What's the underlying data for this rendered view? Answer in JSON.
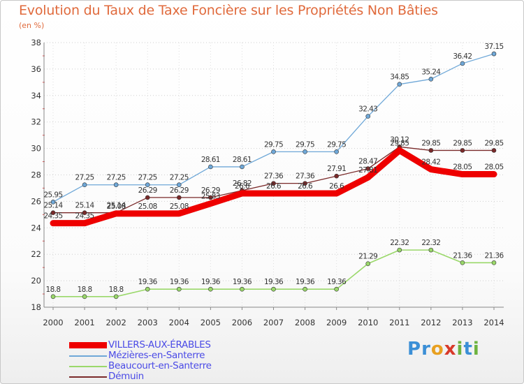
{
  "title": "Evolution du Taux de Taxe Foncière sur les Propriétés Non Bâties",
  "subtitle": "(en %)",
  "logo": {
    "text": "Proxiti",
    "letters": [
      "P",
      "r",
      "o",
      "x",
      "i",
      "t",
      "i"
    ]
  },
  "chart_data": {
    "type": "line",
    "title": "Evolution du Taux de Taxe Foncière sur les Propriétés Non Bâties",
    "ylabel": "(en %)",
    "xlabel": "",
    "x": [
      "2000",
      "2001",
      "2002",
      "2003",
      "2004",
      "2005",
      "2006",
      "2007",
      "2008",
      "2009",
      "2010",
      "2011",
      "2012",
      "2013",
      "2014"
    ],
    "ylim": [
      18,
      38
    ],
    "yticks": [
      "18",
      "20",
      "22",
      "24",
      "26",
      "28",
      "30",
      "32",
      "34",
      "36",
      "38"
    ],
    "grid": "horizontal dotted",
    "legend_position": "bottom-left",
    "series": [
      {
        "name": "VILLERS-AUX-ÉRABLES",
        "color": "#ee0000",
        "values": [
          24.35,
          24.35,
          25.08,
          25.08,
          25.08,
          25.83,
          26.6,
          26.6,
          26.6,
          26.6,
          27.81,
          29.85,
          28.42,
          28.05,
          28.05
        ],
        "labels": [
          "24.35",
          "24.35",
          "25.08",
          "25.08",
          "25.08",
          "25.83",
          "26.6",
          "26.6",
          "26.6",
          "26.6",
          "27.81",
          "29.85",
          "28.42",
          "28.05",
          "28.05"
        ]
      },
      {
        "name": "Mézières-en-Santerre",
        "color": "#6fa8d8",
        "values": [
          25.95,
          27.25,
          27.25,
          27.25,
          27.25,
          28.61,
          28.61,
          29.75,
          29.75,
          29.75,
          32.43,
          34.85,
          35.24,
          36.42,
          37.15
        ],
        "labels": [
          "25.95",
          "27.25",
          "27.25",
          "27.25",
          "27.25",
          "28.61",
          "28.61",
          "29.75",
          "29.75",
          "29.75",
          "32.43",
          "34.85",
          "35.24",
          "36.42",
          "37.15"
        ]
      },
      {
        "name": "Beaucourt-en-Santerre",
        "color": "#9ad86a",
        "values": [
          18.8,
          18.8,
          18.8,
          19.36,
          19.36,
          19.36,
          19.36,
          19.36,
          19.36,
          19.36,
          21.29,
          22.32,
          22.32,
          21.36,
          21.36
        ],
        "labels": [
          "18.8",
          "18.8",
          "18.8",
          "19.36",
          "19.36",
          "19.36",
          "19.36",
          "19.36",
          "19.36",
          "19.36",
          "21.29",
          "22.32",
          "22.32",
          "21.36",
          "21.36"
        ]
      },
      {
        "name": "Démuin",
        "color": "#7a2a2a",
        "values": [
          25.14,
          25.14,
          25.14,
          26.29,
          26.29,
          26.29,
          26.82,
          27.36,
          27.36,
          27.91,
          28.47,
          30.12,
          29.85,
          29.85,
          29.85
        ],
        "labels": [
          "25.14",
          "25.14",
          "25.14",
          "26.29",
          "26.29",
          "26.29",
          "26.82",
          "27.36",
          "27.36",
          "27.91",
          "28.47",
          "30.12",
          "29.85",
          "29.85",
          "29.85"
        ]
      }
    ]
  }
}
